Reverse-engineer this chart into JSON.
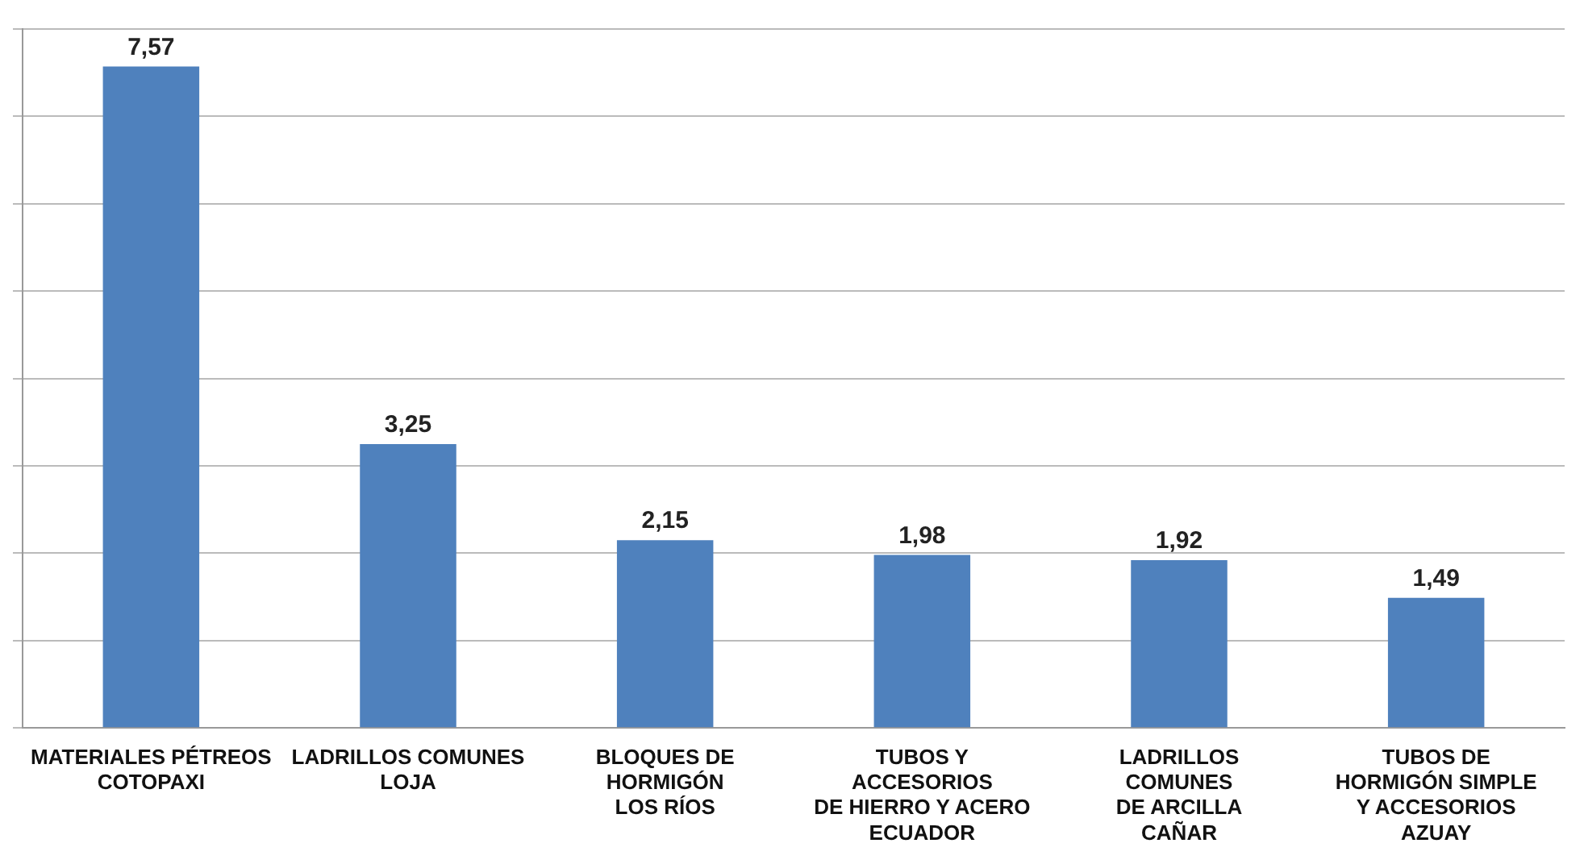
{
  "chart_data": {
    "type": "bar",
    "categories": [
      "MATERIALES PÉTREOS\nCOTOPAXI",
      "LADRILLOS COMUNES\nLOJA",
      "BLOQUES DE\nHORMIGÓN\nLOS RÍOS",
      "TUBOS Y\nACCESORIOS\nDE HIERRO Y ACERO\nECUADOR",
      "LADRILLOS\nCOMUNES\nDE ARCILLA\nCAÑAR",
      "TUBOS DE\nHORMIGÓN SIMPLE\nY ACCESORIOS\nAZUAY"
    ],
    "values": [
      7.57,
      3.25,
      2.15,
      1.98,
      1.92,
      1.49
    ],
    "value_labels": [
      "7,57",
      "3,25",
      "2,15",
      "1,98",
      "1,92",
      "1,49"
    ],
    "color": "#4f81bd",
    "ylim": [
      0,
      8
    ],
    "yticks": [
      {
        "value": 0,
        "label": null
      },
      {
        "value": 1,
        "label": null
      },
      {
        "value": 2,
        "label": null
      },
      {
        "value": 3,
        "label": null
      },
      {
        "value": 4,
        "label": null
      },
      {
        "value": 5,
        "label": null
      },
      {
        "value": 6,
        "label": null
      },
      {
        "value": 7,
        "label": null
      },
      {
        "value": 8,
        "label": null
      }
    ],
    "grid": "y",
    "tick_labels": "x",
    "legend": false
  }
}
